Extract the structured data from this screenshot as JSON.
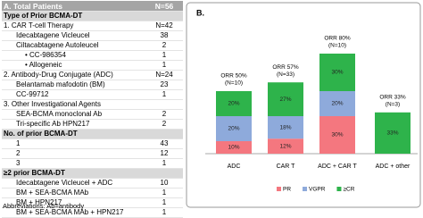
{
  "table": {
    "header": [
      "A.  Total Patients",
      "N=56"
    ],
    "rows": [
      [
        "Type of Prior BCMA-DT"
      ],
      [
        "1. CAR T-cell Therapy",
        "N=42"
      ],
      [
        "Idecabtagene Vicleucel",
        38
      ],
      [
        "Ciltacabtagene Autoleucel",
        2
      ],
      [
        "• CC-986354",
        1
      ],
      [
        "• Allogeneic",
        1
      ],
      [
        "2. Antibody-Drug Conjugate (ADC)",
        "N=24"
      ],
      [
        "Belantamab mafodotin (BM)",
        23
      ],
      [
        "CC-99712",
        1
      ],
      [
        "3. Other Investigational Agents"
      ],
      [
        "SEA-BCMA monoclonal Ab",
        2
      ],
      [
        "Tri-specific Ab HPN217",
        2
      ],
      [
        "No. of prior BCMA-DT"
      ],
      [
        "1",
        43
      ],
      [
        "2",
        12
      ],
      [
        "3",
        1
      ],
      [
        "≥2 prior BCMA-DT"
      ],
      [
        "Idecabtagene Vicleucel + ADC",
        10
      ],
      [
        "BM + SEA-BCMA MAb",
        1
      ],
      [
        "BM + HPN217",
        1
      ],
      [
        "BM + SEA-BCMA MAb + HPN217",
        1
      ]
    ],
    "footnote": "Abbreviations: Ab=antibody"
  },
  "chart_data": {
    "type": "bar",
    "stacked": true,
    "panel_label": "B.",
    "categories": [
      "ADC",
      "CAR T",
      "ADC + CAR T",
      "ADC + other"
    ],
    "series": [
      {
        "name": "PR",
        "color": "#f4777f",
        "values": [
          10,
          12,
          30,
          null
        ],
        "value_labels": [
          "10%",
          "12%",
          "30%",
          null
        ]
      },
      {
        "name": "VGPR",
        "color": "#8eaadb",
        "values": [
          20,
          18,
          20,
          null
        ],
        "value_labels": [
          "20%",
          "18%",
          "20%",
          null
        ]
      },
      {
        "name": "≥CR",
        "color": "#2eb34b",
        "values": [
          20,
          27,
          30,
          33
        ],
        "value_labels": [
          "20%",
          "27%",
          "30%",
          "33%"
        ]
      }
    ],
    "annotations": [
      [
        "ORR 50%",
        "(N=10)"
      ],
      [
        "ORR 57%",
        "(N=33)"
      ],
      [
        "ORR 80%",
        "(N=10)"
      ],
      [
        "ORR 33%",
        "(N=3)"
      ]
    ]
  }
}
